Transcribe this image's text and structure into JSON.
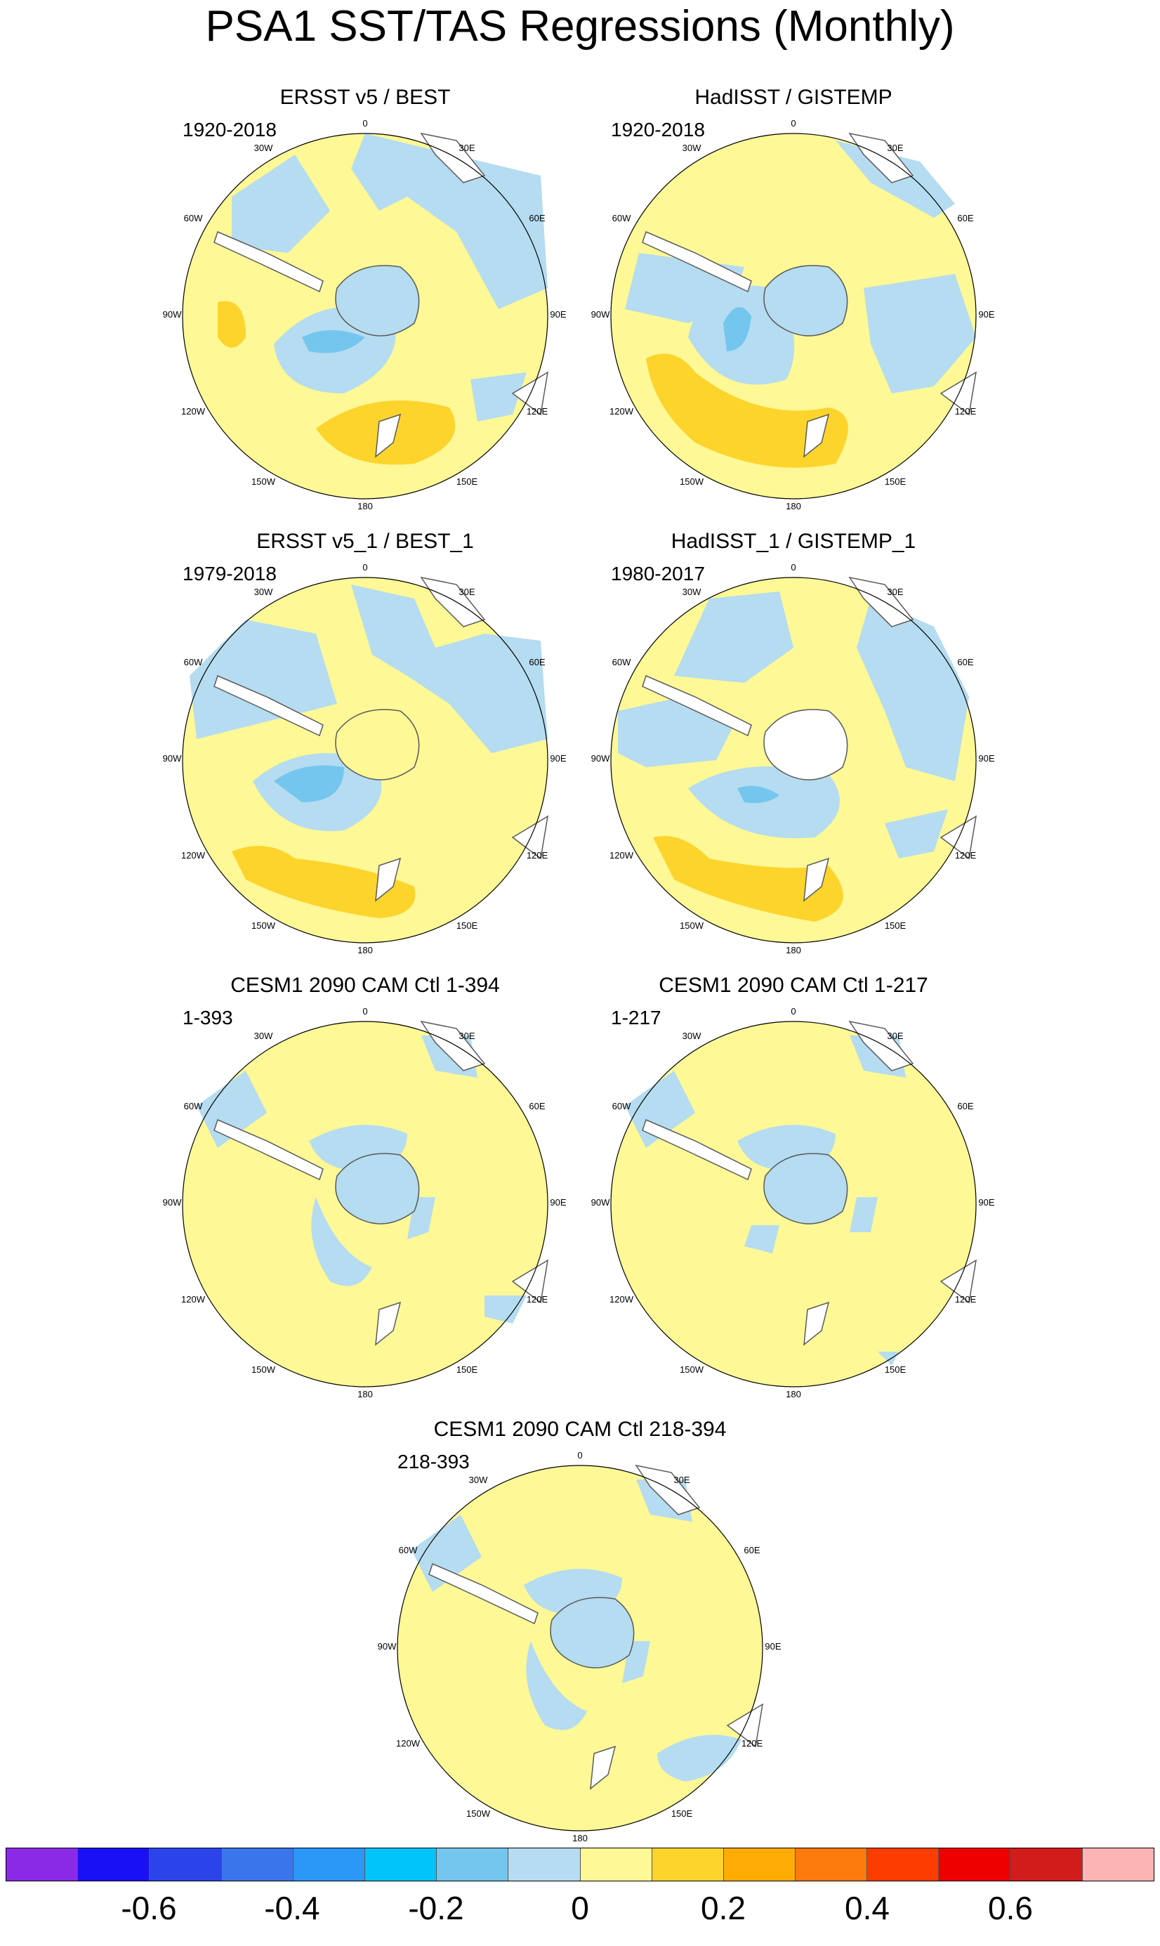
{
  "title": "PSA1 SST/TAS Regressions (Monthly)",
  "colors": {
    "neg_light": "#b5dcf0",
    "neg_mid": "#74c6ee",
    "pos_light": "#fef896",
    "pos_mid": "#fdd42c",
    "land_blank": "#ffffff",
    "coast": "#5a5a5a"
  },
  "longitude_labels": [
    "0",
    "30E",
    "60E",
    "90E",
    "120E",
    "150E",
    "180",
    "150W",
    "120W",
    "90W",
    "60W",
    "30W"
  ],
  "panels": [
    {
      "id": "p1",
      "title": "ERSST v5 / BEST",
      "years": "1920-2018"
    },
    {
      "id": "p2",
      "title": "HadISST / GISTEMP",
      "years": "1920-2018"
    },
    {
      "id": "p3",
      "title": "ERSST v5_1 / BEST_1",
      "years": "1979-2018"
    },
    {
      "id": "p4",
      "title": "HadISST_1 / GISTEMP_1",
      "years": "1980-2017"
    },
    {
      "id": "p5",
      "title": "CESM1 2090 CAM Ctl 1-394",
      "years": "1-393"
    },
    {
      "id": "p6",
      "title": "CESM1 2090 CAM Ctl 1-217",
      "years": "1-217"
    },
    {
      "id": "p7",
      "title": "CESM1 2090 CAM Ctl 218-394",
      "years": "218-393"
    }
  ],
  "colorbar": {
    "colors": [
      "#8a2ae6",
      "#1a10f5",
      "#2b44ea",
      "#3a75ec",
      "#2b98f7",
      "#00c4fa",
      "#74c6ee",
      "#b5dcf0",
      "#fef896",
      "#fdd42c",
      "#feab04",
      "#fd7a0c",
      "#fd3c00",
      "#ee0000",
      "#d21c1c",
      "#fdb4b4"
    ],
    "tick_labels": [
      "-0.6",
      "-0.4",
      "-0.2",
      "0",
      "0.2",
      "0.4",
      "0.6"
    ]
  }
}
